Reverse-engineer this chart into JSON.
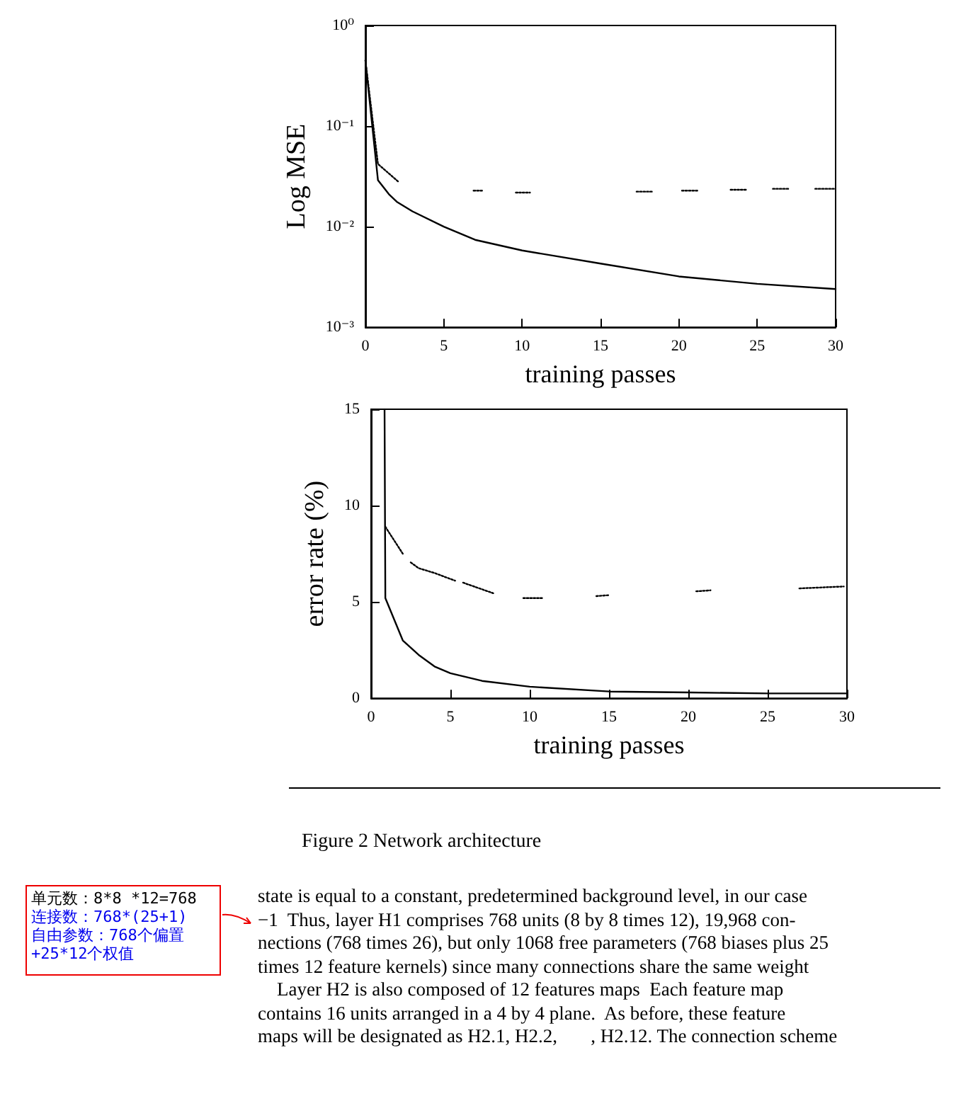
{
  "chart_data": [
    {
      "type": "line",
      "xlabel": "training passes",
      "ylabel": "Log MSE",
      "log": "y",
      "marker": "none",
      "xlim": [
        0,
        30
      ],
      "xticks": [
        0,
        5,
        10,
        15,
        20,
        25,
        30
      ],
      "ylim": [
        0.001,
        1
      ],
      "yticks": [
        {
          "value": 0.001,
          "label": "10⁻³"
        },
        {
          "value": 0.01,
          "label": "10⁻²"
        },
        {
          "value": 0.1,
          "label": "10⁻¹"
        },
        {
          "value": 1,
          "label": "10⁰"
        }
      ],
      "series": [
        {
          "color": "#000000",
          "line_style": "solid",
          "x": [
            0,
            0.8,
            1.5,
            2,
            3,
            5,
            7,
            10,
            15,
            20,
            25,
            30
          ],
          "values": [
            0.45,
            0.029,
            0.021,
            0.0177,
            0.0142,
            0.01,
            0.0074,
            0.0058,
            0.0043,
            0.0032,
            0.0027,
            0.0024
          ]
        },
        {
          "color": "#000000",
          "line_style": "dotted",
          "x": [
            0,
            0.8,
            2.1,
            4.5,
            6.9,
            7.5,
            8.5,
            9.6,
            10.5,
            14,
            17.3,
            18.3,
            19.2,
            20.2,
            21.2,
            22.2,
            23.3,
            24.3,
            25.1,
            26,
            27,
            27.8,
            28.7,
            30
          ],
          "values": [
            0.45,
            0.042,
            0.028,
            null,
            0.0228,
            0.0228,
            null,
            0.0218,
            0.0218,
            null,
            0.0223,
            0.0223,
            null,
            0.0228,
            0.0228,
            null,
            0.0233,
            0.0233,
            null,
            0.0238,
            0.0238,
            null,
            0.0238,
            0.0238
          ]
        }
      ]
    },
    {
      "type": "line",
      "xlabel": "training passes",
      "ylabel": "error rate (%)",
      "marker": "none",
      "xlim": [
        0,
        30
      ],
      "xticks": [
        0,
        5,
        10,
        15,
        20,
        25,
        30
      ],
      "ylim": [
        0,
        15
      ],
      "yticks": [
        0,
        5,
        10,
        15
      ],
      "series": [
        {
          "color": "#000000",
          "line_style": "solid",
          "x": [
            0.85,
            0.9,
            2,
            3,
            4,
            5,
            7,
            10,
            15,
            20,
            25,
            30
          ],
          "values": [
            15,
            5.2,
            3.0,
            2.25,
            1.65,
            1.3,
            0.9,
            0.6,
            0.35,
            0.3,
            0.25,
            0.25
          ]
        },
        {
          "color": "#000000",
          "line_style": "dotted",
          "x": [
            0.9,
            2,
            2.25,
            2.5,
            3,
            4,
            5.3,
            5.55,
            5.8,
            7.7,
            8.6,
            9.6,
            10.8,
            12.5,
            14.2,
            15,
            17.7,
            20.5,
            21.4,
            24,
            27,
            29.8
          ],
          "values": [
            8.9,
            7.5,
            null,
            7.05,
            6.75,
            6.5,
            6.1,
            null,
            6.0,
            5.45,
            null,
            5.2,
            5.2,
            null,
            5.3,
            5.35,
            null,
            5.55,
            5.6,
            null,
            5.7,
            5.8
          ]
        }
      ],
      "annotations": [
        "Figure 2  Network architecture",
        "state is equal to a constant, predetermined background level, in our case",
        "−1  Thus, layer H1 comprises 768 units (8 by 8 times 12), 19,968 con-",
        "nections (768 times 26), but only 1068 free parameters (768 biases plus 25",
        "times 12 feature kernels) since many connections share the same weight",
        "    Layer H2 is also composed of 12 features maps  Each feature map",
        "contains 16 units arranged in a 4 by 4 plane.  As before, these feature",
        "maps will be designated as H2.1, H2.2,       , H2.12. The connection scheme"
      ]
    },
    {
      "type": "other",
      "annotations": [
        "单元数：8*8 *12=768",
        "连接数：768*(25+1)",
        "自由参数：768个偏置",
        "+25*12个权值"
      ]
    }
  ]
}
